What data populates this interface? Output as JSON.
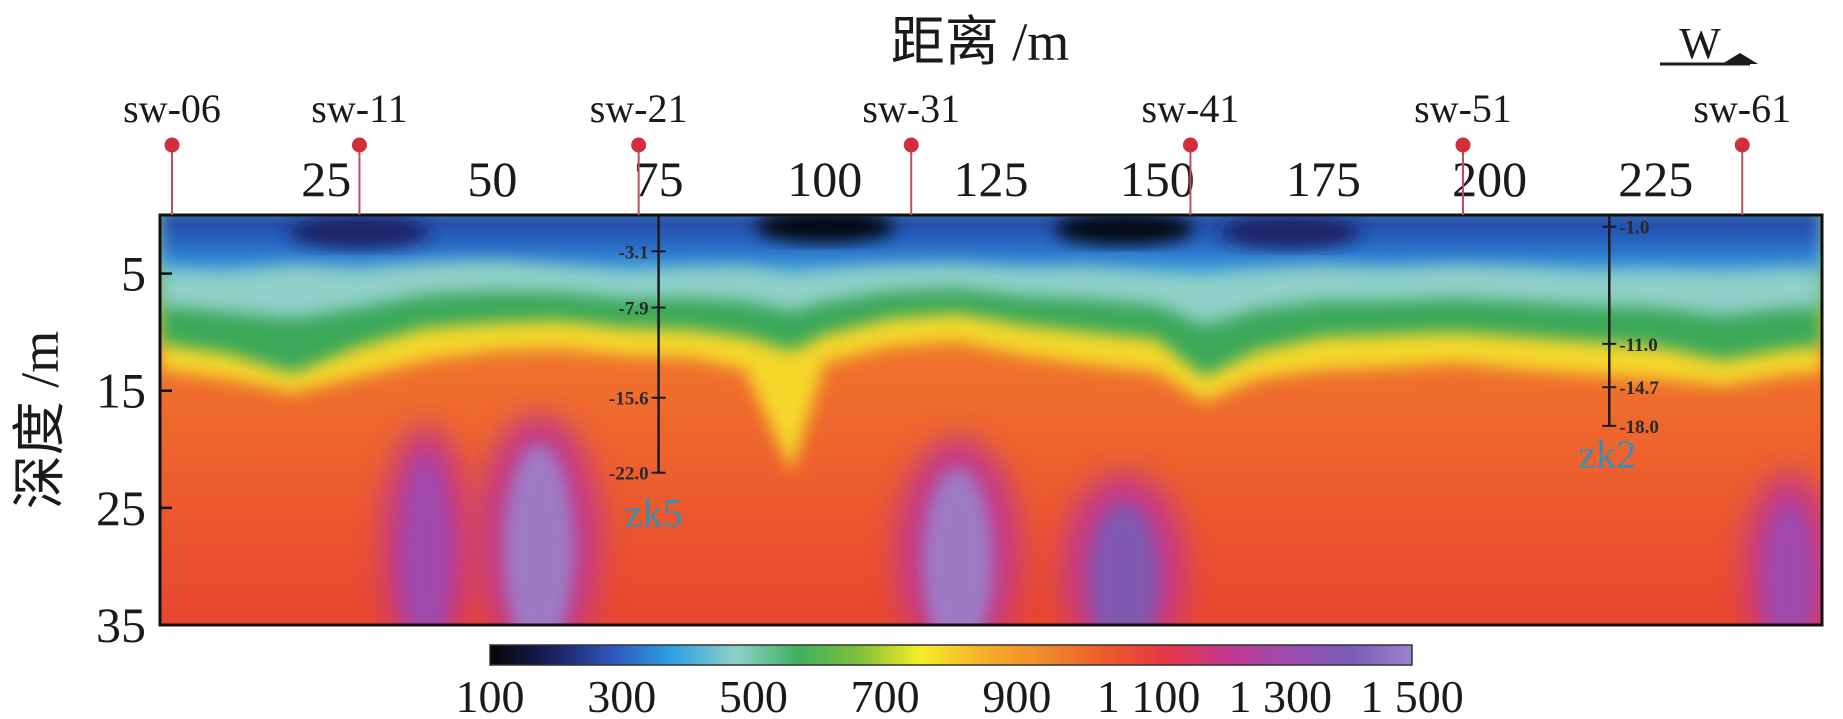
{
  "chart_data": {
    "type": "heatmap",
    "title": "",
    "xlabel": "距离 /m",
    "ylabel": "深度 /m",
    "xlim": [
      0,
      250
    ],
    "ylim": [
      0,
      35
    ],
    "x_ticks": [
      25,
      50,
      75,
      100,
      125,
      150,
      175,
      200,
      225
    ],
    "y_ticks": [
      5,
      15,
      25,
      35
    ],
    "colorbar": {
      "range": [
        100,
        1500
      ],
      "tick_labels": [
        "100",
        "300",
        "500",
        "700",
        "900",
        "1 100",
        "1 300",
        "1 500"
      ],
      "tick_values": [
        100,
        300,
        500,
        700,
        900,
        1100,
        1300,
        1500
      ],
      "colors": [
        "#050505",
        "#1a1f5c",
        "#2e58bd",
        "#2fa3e3",
        "#8fd0c8",
        "#3fb061",
        "#7fbf3a",
        "#f5ee28",
        "#f6b12b",
        "#f08a2a",
        "#ee5a2c",
        "#e43845",
        "#c2388e",
        "#9d4cb0",
        "#7a5cb5",
        "#9a82cc"
      ]
    },
    "stations": [
      {
        "label": "sw-06",
        "x": 0
      },
      {
        "label": "sw-11",
        "x": 30
      },
      {
        "label": "sw-21",
        "x": 72
      },
      {
        "label": "sw-31",
        "x": 113
      },
      {
        "label": "sw-41",
        "x": 155
      },
      {
        "label": "sw-51",
        "x": 196
      },
      {
        "label": "sw-61",
        "x": 238
      }
    ],
    "boreholes": [
      {
        "name": "zk5",
        "x": 75,
        "depths": [
          3.1,
          7.9,
          15.6,
          22.0
        ],
        "labels": [
          "-3.1",
          "-7.9",
          "-15.6",
          "-22.0"
        ]
      },
      {
        "name": "zk2",
        "x": 218,
        "depths": [
          1.0,
          11.0,
          14.7,
          18.0
        ],
        "labels": [
          "-1.0",
          "-11.0",
          "-14.7",
          "-18.0"
        ]
      }
    ],
    "layers": {
      "x": [
        0,
        10,
        20,
        30,
        40,
        50,
        60,
        70,
        80,
        88,
        95,
        100,
        110,
        120,
        130,
        140,
        150,
        157,
        165,
        175,
        185,
        195,
        205,
        215,
        225,
        235,
        245,
        250
      ],
      "low_velocity_bottom": [
        4.5,
        4.8,
        4.2,
        4.6,
        4.0,
        3.8,
        4.2,
        4.7,
        4.4,
        4.3,
        4.9,
        4.6,
        4.2,
        4.1,
        4.5,
        4.4,
        4.8,
        5.0,
        4.6,
        4.3,
        4.5,
        4.2,
        4.4,
        4.7,
        4.6,
        4.8,
        4.5,
        4.6
      ],
      "green_bottom": [
        11.0,
        11.8,
        13.5,
        11.2,
        9.6,
        9.2,
        9.0,
        9.6,
        9.8,
        10.4,
        11.6,
        10.2,
        8.8,
        8.4,
        9.4,
        10.0,
        10.6,
        13.8,
        11.6,
        10.4,
        10.2,
        10.0,
        10.4,
        10.8,
        11.2,
        12.4,
        11.4,
        11.2
      ],
      "yellow_bottom": [
        13.2,
        14.0,
        15.2,
        13.8,
        12.4,
        11.6,
        11.4,
        12.0,
        12.2,
        13.2,
        22.0,
        12.6,
        11.2,
        10.8,
        12.0,
        12.8,
        13.4,
        16.0,
        14.0,
        13.2,
        13.0,
        12.6,
        13.2,
        13.6,
        14.0,
        14.6,
        13.6,
        13.4
      ]
    },
    "high_velocity_zones": [
      {
        "x_center": 40,
        "top": 18,
        "bottom": 35,
        "level": 1350
      },
      {
        "x_center": 57,
        "top": 17,
        "bottom": 35,
        "level": 1500
      },
      {
        "x_center": 120,
        "top": 19,
        "bottom": 35,
        "level": 1500
      },
      {
        "x_center": 145,
        "top": 22,
        "bottom": 35,
        "level": 1450
      },
      {
        "x_center": 245,
        "top": 22,
        "bottom": 35,
        "level": 1300
      }
    ],
    "low_velocity_pockets": [
      {
        "x_center": 30,
        "y_center": 1.5,
        "level": 180
      },
      {
        "x_center": 100,
        "y_center": 1.0,
        "level": 120
      },
      {
        "x_center": 145,
        "y_center": 1.2,
        "level": 140
      },
      {
        "x_center": 170,
        "y_center": 1.5,
        "level": 160
      }
    ]
  },
  "compass": {
    "label": "W"
  }
}
